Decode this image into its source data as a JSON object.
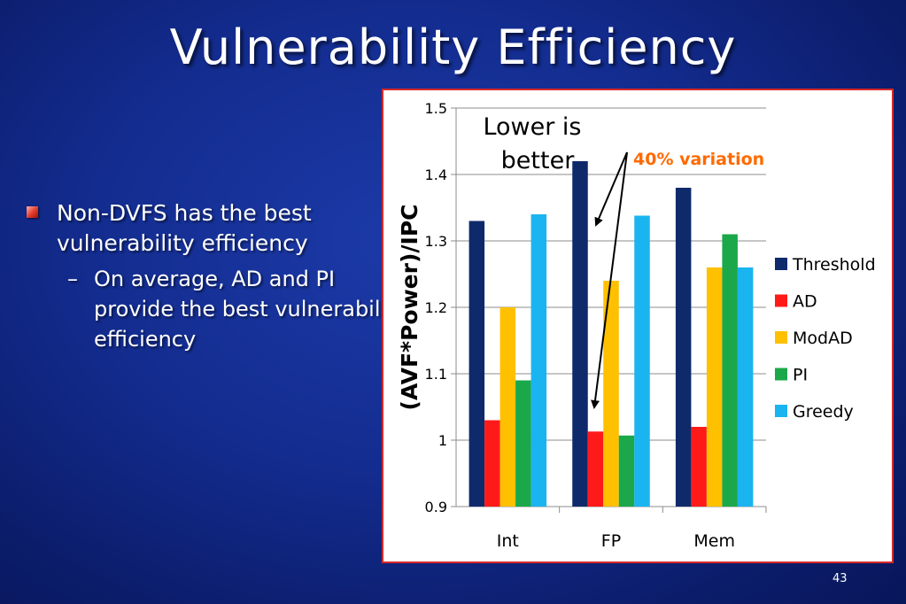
{
  "slide": {
    "title": "Vulnerability Efficiency",
    "bullet": "Non-DVFS has the best vulnerability efficiency",
    "sub_bullet_marker": "–",
    "sub_bullet": "On average, AD and PI provide the best vulnerability efficiency",
    "page_number": "43"
  },
  "chart_data": {
    "type": "bar",
    "ylabel": "(AVF*Power)/IPC",
    "xlabel": "",
    "ylim": [
      0.9,
      1.5
    ],
    "yticks": [
      "0.9",
      "1",
      "1.1",
      "1.2",
      "1.3",
      "1.4",
      "1.5"
    ],
    "categories": [
      "Int",
      "FP",
      "Mem"
    ],
    "series": [
      {
        "name": "Threshold",
        "color": "#0f2a6b",
        "values": [
          1.33,
          1.42,
          1.38
        ]
      },
      {
        "name": "AD",
        "color": "#ff1a1a",
        "values": [
          1.03,
          1.013,
          1.02
        ]
      },
      {
        "name": "ModAD",
        "color": "#ffc000",
        "values": [
          1.2,
          1.24,
          1.26
        ]
      },
      {
        "name": "PI",
        "color": "#1aa84a",
        "values": [
          1.09,
          1.007,
          1.31
        ]
      },
      {
        "name": "Greedy",
        "color": "#1ab4f0",
        "values": [
          1.34,
          1.338,
          1.26
        ]
      }
    ],
    "legend_position": "right",
    "grid": true,
    "annotations": {
      "lower_is_better": [
        "Lower is",
        "better"
      ],
      "variation": "40% variation",
      "variation_color": "#ff6a00"
    }
  }
}
